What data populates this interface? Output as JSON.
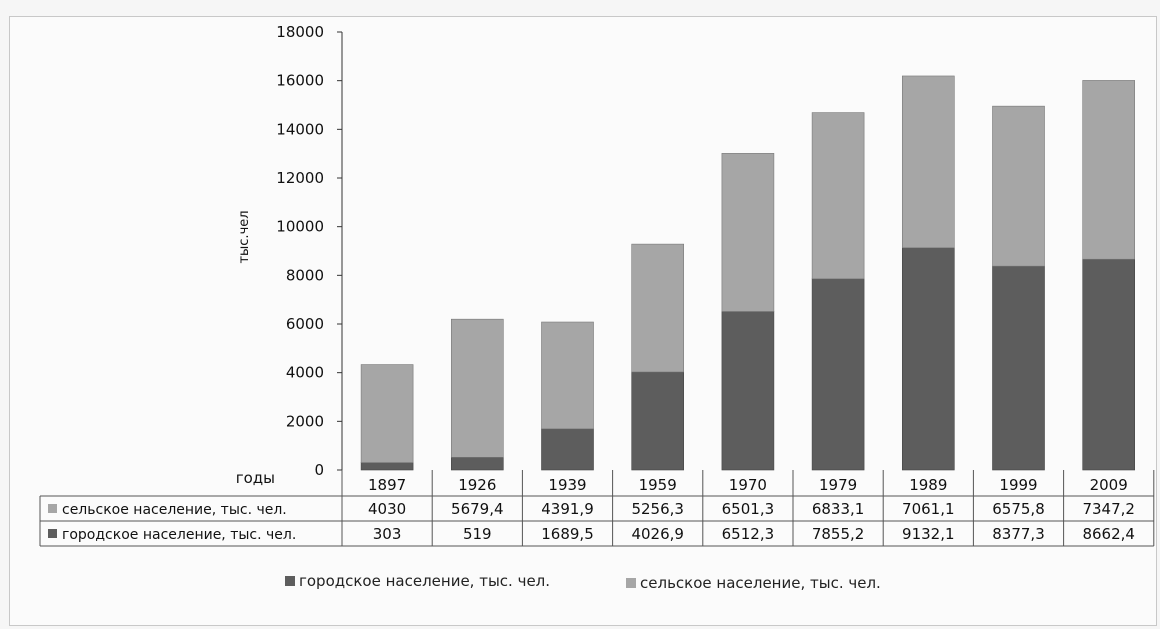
{
  "chart_data": {
    "type": "bar",
    "stacked": true,
    "categories": [
      "1897",
      "1926",
      "1939",
      "1959",
      "1970",
      "1979",
      "1989",
      "1999",
      "2009"
    ],
    "series": [
      {
        "name": "городское население, тыс. чел.",
        "values": [
          303,
          519,
          1689.5,
          4026.9,
          6512.3,
          7855.2,
          9132.1,
          8377.3,
          8662.4
        ],
        "table_values": [
          "303",
          "519",
          "1689,5",
          "4026,9",
          "6512,3",
          "7855,2",
          "9132,1",
          "8377,3",
          "8662,4"
        ],
        "color": "#5d5d5d"
      },
      {
        "name": "сельское население, тыс. чел.",
        "values": [
          4030,
          5679.4,
          4391.9,
          5256.3,
          6501.3,
          6833.1,
          7061.1,
          6575.8,
          7347.2
        ],
        "table_values": [
          "4030",
          "5679,4",
          "4391,9",
          "5256,3",
          "6501,3",
          "6833,1",
          "7061,1",
          "6575,8",
          "7347,2"
        ],
        "color": "#a6a6a6"
      }
    ],
    "ylabel": "тыс.чел",
    "xlabel": "годы",
    "ylim": [
      0,
      18000
    ],
    "yticks": [
      "0",
      "2000",
      "4000",
      "6000",
      "8000",
      "10000",
      "12000",
      "14000",
      "16000",
      "18000"
    ],
    "grid": false,
    "legend_position": "bottom",
    "data_table": true
  }
}
